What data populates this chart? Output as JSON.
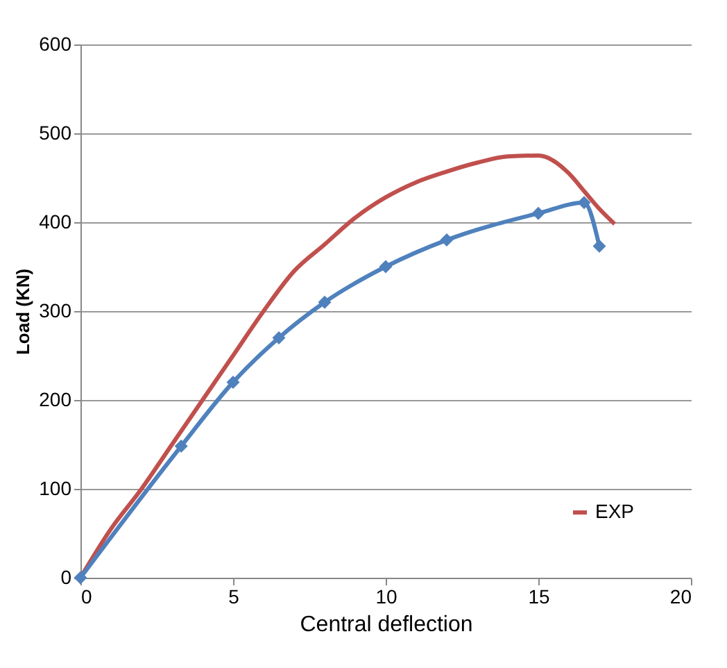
{
  "chart_data": {
    "type": "line",
    "xlabel": "Central deflection",
    "ylabel": "Load (KN)",
    "xlim": [
      0,
      20
    ],
    "xticks": [
      0,
      5,
      10,
      15,
      20
    ],
    "ylim": [
      0,
      600
    ],
    "yticks": [
      0,
      100,
      200,
      300,
      400,
      500,
      600
    ],
    "grid": "y",
    "legend": "bottom right",
    "series": [
      {
        "name": "EXP",
        "color": "#c0504d",
        "marker": "none",
        "x": [
          0,
          1,
          2,
          3,
          4,
          5,
          6,
          7,
          8,
          9,
          10,
          11,
          12,
          13,
          14,
          15,
          16,
          16.5,
          17,
          17.5
        ],
        "values": [
          0,
          55,
          100,
          150,
          200,
          250,
          300,
          345,
          375,
          405,
          428,
          445,
          457,
          467,
          474,
          475,
          455,
          435,
          415,
          398
        ]
      },
      {
        "color": "#4f81bd",
        "marker": "diamond",
        "x": [
          0,
          3.3,
          5,
          6.5,
          8,
          10,
          12,
          15,
          16.5,
          17
        ],
        "values": [
          0,
          148,
          220,
          270,
          310,
          350,
          380,
          410,
          422,
          373
        ]
      }
    ]
  }
}
